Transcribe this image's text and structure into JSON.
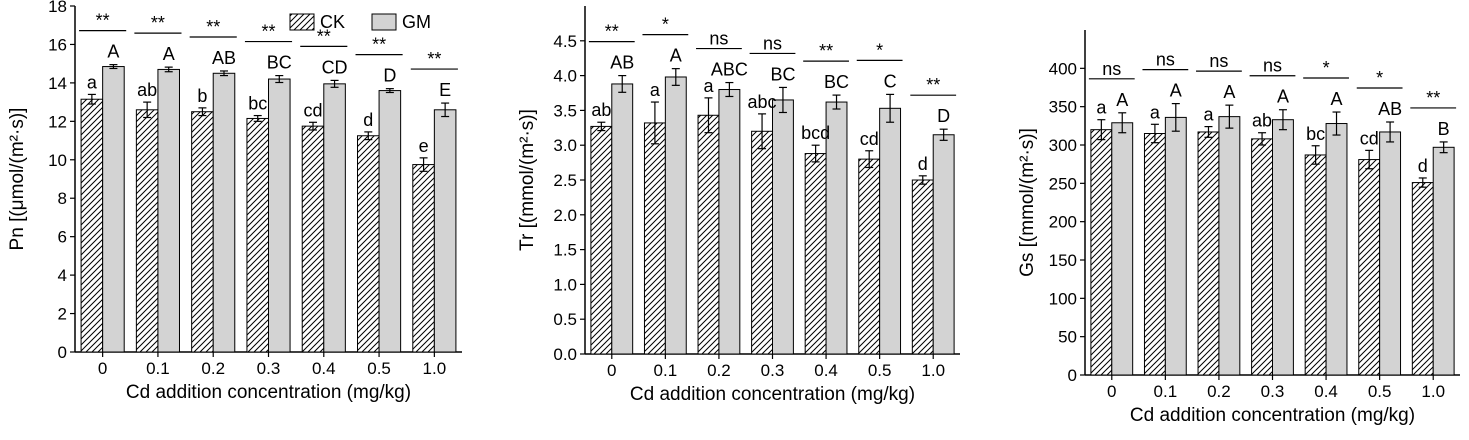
{
  "colors": {
    "ck_fill": "#ffffff",
    "ck_hatch": "#000000",
    "gm_fill": "#d3d3d3",
    "axis": "#000000"
  },
  "legend": {
    "position": "top-right (first panel)",
    "entries": [
      "CK",
      "GM"
    ]
  },
  "chart_data": [
    {
      "type": "bar",
      "categories": [
        "0",
        "0.1",
        "0.2",
        "0.3",
        "0.4",
        "0.5",
        "1.0"
      ],
      "xlabel": "Cd addition concentration (mg/kg)",
      "ylabel": "Pn [(μmol/(m²·s)]",
      "ylim": [
        0,
        18
      ],
      "yticks": [
        0,
        2,
        4,
        6,
        8,
        10,
        12,
        14,
        16,
        18
      ],
      "ytick_labels": [
        "0",
        "2",
        "4",
        "6",
        "8",
        "10",
        "12",
        "14",
        "16",
        "18"
      ],
      "legend": true,
      "series": [
        {
          "name": "CK",
          "pattern": "hatched",
          "values": [
            13.15,
            12.6,
            12.5,
            12.15,
            11.75,
            11.25,
            9.75
          ],
          "errors": [
            0.25,
            0.4,
            0.2,
            0.15,
            0.2,
            0.2,
            0.35
          ],
          "labels": [
            "a",
            "ab",
            "b",
            "bc",
            "cd",
            "d",
            "e"
          ]
        },
        {
          "name": "GM",
          "pattern": "solid",
          "values": [
            14.85,
            14.7,
            14.5,
            14.2,
            13.95,
            13.6,
            12.6
          ],
          "errors": [
            0.1,
            0.12,
            0.12,
            0.18,
            0.18,
            0.1,
            0.35
          ],
          "labels": [
            "A",
            "A",
            "AB",
            "BC",
            "CD",
            "D",
            "E"
          ]
        }
      ],
      "significance": [
        "**",
        "**",
        "**",
        "**",
        "**",
        "**",
        "**"
      ]
    },
    {
      "type": "bar",
      "categories": [
        "0",
        "0.1",
        "0.2",
        "0.3",
        "0.4",
        "0.5",
        "1.0"
      ],
      "xlabel": "Cd addition concentration (mg/kg)",
      "ylabel": "Tr [(mmol/(m²·s)]",
      "ylim": [
        0,
        5.0
      ],
      "yticks": [
        0,
        0.5,
        1.0,
        1.5,
        2.0,
        2.5,
        3.0,
        3.5,
        4.0,
        4.5
      ],
      "ytick_labels": [
        "0.0",
        "0.5",
        "1.0",
        "1.5",
        "2.0",
        "2.5",
        "3.0",
        "3.5",
        "4.0",
        "4.5"
      ],
      "legend": false,
      "series": [
        {
          "name": "CK",
          "pattern": "hatched",
          "values": [
            3.27,
            3.32,
            3.43,
            3.2,
            2.88,
            2.8,
            2.5
          ],
          "errors": [
            0.06,
            0.3,
            0.25,
            0.25,
            0.12,
            0.12,
            0.06
          ],
          "labels": [
            "ab",
            "a",
            "a",
            "abc",
            "bcd",
            "cd",
            "d"
          ]
        },
        {
          "name": "GM",
          "pattern": "solid",
          "values": [
            3.88,
            3.98,
            3.8,
            3.65,
            3.62,
            3.53,
            3.15
          ],
          "errors": [
            0.12,
            0.12,
            0.1,
            0.18,
            0.1,
            0.2,
            0.08
          ],
          "labels": [
            "AB",
            "A",
            "ABC",
            "BC",
            "BC",
            "C",
            "D"
          ]
        }
      ],
      "significance": [
        "**",
        "*",
        "ns",
        "ns",
        "**",
        "*",
        "**"
      ]
    },
    {
      "type": "bar",
      "categories": [
        "0",
        "0.1",
        "0.2",
        "0.3",
        "0.4",
        "0.5",
        "1.0"
      ],
      "xlabel": "Cd addition concentration (mg/kg)",
      "ylabel": "Gs [(mmol/(m²·s)]",
      "ylim": [
        0,
        450
      ],
      "yticks": [
        0,
        50,
        100,
        150,
        200,
        250,
        300,
        350,
        400
      ],
      "ytick_labels": [
        "0",
        "50",
        "100",
        "150",
        "200",
        "250",
        "300",
        "350",
        "400"
      ],
      "legend": false,
      "series": [
        {
          "name": "CK",
          "pattern": "hatched",
          "values": [
            320,
            315,
            317,
            308,
            287,
            281,
            251
          ],
          "errors": [
            13,
            12,
            7,
            8,
            12,
            12,
            6
          ],
          "labels": [
            "a",
            "a",
            "a",
            "ab",
            "bc",
            "cd",
            "d"
          ]
        },
        {
          "name": "GM",
          "pattern": "solid",
          "values": [
            329,
            336,
            337,
            333,
            328,
            317,
            297
          ],
          "errors": [
            13,
            18,
            15,
            13,
            15,
            13,
            7
          ],
          "labels": [
            "A",
            "A",
            "A",
            "A",
            "A",
            "AB",
            "B"
          ]
        }
      ],
      "significance": [
        "ns",
        "ns",
        "ns",
        "ns",
        "*",
        "*",
        "**"
      ]
    }
  ]
}
